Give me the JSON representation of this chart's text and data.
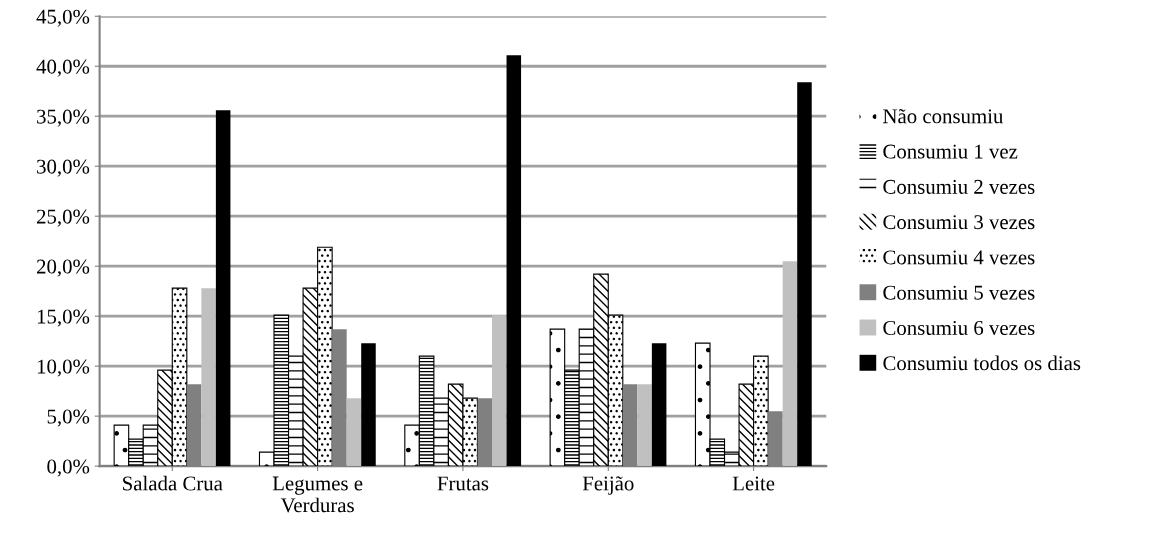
{
  "chart_data": {
    "type": "bar",
    "categories": [
      "Salada Crua",
      "Legumes e\nVerduras",
      "Frutas",
      "Feijão",
      "Leite"
    ],
    "series": [
      {
        "name": "Não consumiu",
        "color": "#000000",
        "values": [
          4.1,
          1.4,
          4.1,
          13.7,
          12.3
        ]
      },
      {
        "name": "Consumiu 1 vez",
        "color": "#000000",
        "values": [
          2.7,
          15.1,
          11.0,
          9.6,
          2.7
        ]
      },
      {
        "name": "Consumiu 2 vezes",
        "color": "#000000",
        "values": [
          4.1,
          11.0,
          6.8,
          13.7,
          1.4
        ]
      },
      {
        "name": "Consumiu 3 vezes",
        "color": "#000000",
        "values": [
          9.6,
          17.8,
          8.2,
          19.2,
          8.2
        ]
      },
      {
        "name": "Consumiu 4 vezes",
        "color": "#000000",
        "values": [
          17.8,
          21.9,
          6.8,
          15.1,
          11.0
        ]
      },
      {
        "name": "Consumiu 5 vezes",
        "color": "#808080",
        "values": [
          8.2,
          13.7,
          6.8,
          8.2,
          5.5
        ]
      },
      {
        "name": "Consumiu 6 vezes",
        "color": "#c0c0c0",
        "values": [
          17.8,
          6.8,
          15.1,
          8.2,
          20.5
        ]
      },
      {
        "name": "Consumiu todos os dias",
        "color": "#000000",
        "values": [
          35.6,
          12.3,
          41.1,
          12.3,
          38.4
        ]
      }
    ],
    "ylim": [
      0,
      45
    ],
    "yticks": [
      {
        "value": 0,
        "label": "0,0%"
      },
      {
        "value": 5,
        "label": "5,0%"
      },
      {
        "value": 10,
        "label": "10,0%"
      },
      {
        "value": 15,
        "label": "15,0%"
      },
      {
        "value": 20,
        "label": "20,0%"
      },
      {
        "value": 25,
        "label": "25,0%"
      },
      {
        "value": 30,
        "label": "30,0%"
      },
      {
        "value": 35,
        "label": "35,0%"
      },
      {
        "value": 40,
        "label": "40,0%"
      },
      {
        "value": 45,
        "label": "45,0%"
      }
    ],
    "grid": "y",
    "legend": "right"
  }
}
